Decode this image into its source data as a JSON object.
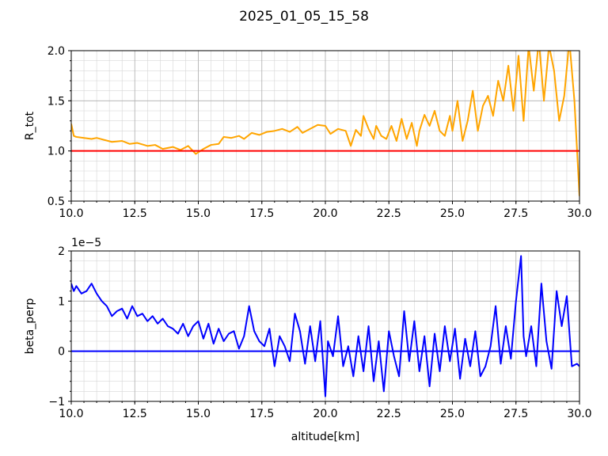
{
  "figure": {
    "title": "2025_01_05_15_58"
  },
  "chart_data": [
    {
      "type": "line",
      "xlabel": "",
      "ylabel": "R_tot",
      "xlim": [
        10.0,
        30.0
      ],
      "ylim": [
        0.5,
        2.0
      ],
      "xticks": [
        "10.0",
        "12.5",
        "15.0",
        "17.5",
        "20.0",
        "22.5",
        "25.0",
        "27.5",
        "30.0"
      ],
      "yticks": [
        "0.5",
        "1.0",
        "1.5",
        "2.0"
      ],
      "xtick_values": [
        10,
        12.5,
        15,
        17.5,
        20,
        22.5,
        25,
        27.5,
        30
      ],
      "ytick_values": [
        0.5,
        1.0,
        1.5,
        2.0
      ],
      "grid": true,
      "reference_line": {
        "y": 1.0,
        "color": "#ff0000"
      },
      "series": [
        {
          "color": "#ffa500",
          "x": [
            10.0,
            10.1,
            10.2,
            10.5,
            10.8,
            11.0,
            11.3,
            11.6,
            12.0,
            12.3,
            12.6,
            13.0,
            13.3,
            13.6,
            14.0,
            14.3,
            14.6,
            14.9,
            15.2,
            15.5,
            15.8,
            16.0,
            16.3,
            16.6,
            16.8,
            17.1,
            17.4,
            17.7,
            18.0,
            18.3,
            18.6,
            18.9,
            19.1,
            19.4,
            19.7,
            20.0,
            20.2,
            20.5,
            20.8,
            21.0,
            21.2,
            21.4,
            21.5,
            21.7,
            21.9,
            22.0,
            22.2,
            22.4,
            22.6,
            22.8,
            23.0,
            23.2,
            23.4,
            23.6,
            23.7,
            23.9,
            24.1,
            24.3,
            24.5,
            24.7,
            24.9,
            25.0,
            25.2,
            25.4,
            25.6,
            25.8,
            26.0,
            26.2,
            26.4,
            26.6,
            26.8,
            27.0,
            27.2,
            27.4,
            27.6,
            27.8,
            28.0,
            28.2,
            28.4,
            28.6,
            28.8,
            29.0,
            29.2,
            29.4,
            29.6,
            29.8,
            30.0
          ],
          "y": [
            1.27,
            1.15,
            1.14,
            1.13,
            1.12,
            1.13,
            1.11,
            1.09,
            1.1,
            1.07,
            1.08,
            1.05,
            1.06,
            1.02,
            1.04,
            1.01,
            1.05,
            0.97,
            1.02,
            1.06,
            1.07,
            1.14,
            1.13,
            1.15,
            1.12,
            1.18,
            1.16,
            1.19,
            1.2,
            1.22,
            1.19,
            1.24,
            1.18,
            1.22,
            1.26,
            1.25,
            1.17,
            1.22,
            1.2,
            1.05,
            1.21,
            1.15,
            1.35,
            1.22,
            1.12,
            1.25,
            1.15,
            1.12,
            1.25,
            1.1,
            1.32,
            1.12,
            1.28,
            1.05,
            1.2,
            1.36,
            1.25,
            1.4,
            1.2,
            1.15,
            1.35,
            1.2,
            1.5,
            1.1,
            1.3,
            1.6,
            1.2,
            1.45,
            1.55,
            1.35,
            1.7,
            1.5,
            1.85,
            1.4,
            1.95,
            1.3,
            2.05,
            1.6,
            2.1,
            1.5,
            2.05,
            1.8,
            1.3,
            1.55,
            2.1,
            1.5,
            0.55
          ]
        }
      ]
    },
    {
      "type": "line",
      "xlabel": "altitude[km]",
      "ylabel": "beta_perp",
      "offset_text": "1e−5",
      "xlim": [
        10.0,
        30.0
      ],
      "ylim": [
        -1,
        2
      ],
      "xticks": [
        "10.0",
        "12.5",
        "15.0",
        "17.5",
        "20.0",
        "22.5",
        "25.0",
        "27.5",
        "30.0"
      ],
      "yticks": [
        "−1",
        "0",
        "1",
        "2"
      ],
      "xtick_values": [
        10,
        12.5,
        15,
        17.5,
        20,
        22.5,
        25,
        27.5,
        30
      ],
      "ytick_values": [
        -1,
        0,
        1,
        2
      ],
      "grid": true,
      "reference_line": {
        "y": 0,
        "color": "#0000ff"
      },
      "series": [
        {
          "color": "#0000ff",
          "x": [
            10.0,
            10.1,
            10.2,
            10.4,
            10.6,
            10.8,
            11.0,
            11.2,
            11.4,
            11.6,
            11.8,
            12.0,
            12.2,
            12.4,
            12.6,
            12.8,
            13.0,
            13.2,
            13.4,
            13.6,
            13.8,
            14.0,
            14.2,
            14.4,
            14.6,
            14.8,
            15.0,
            15.2,
            15.4,
            15.6,
            15.8,
            16.0,
            16.2,
            16.4,
            16.6,
            16.8,
            17.0,
            17.2,
            17.4,
            17.6,
            17.8,
            18.0,
            18.2,
            18.4,
            18.6,
            18.8,
            19.0,
            19.2,
            19.4,
            19.6,
            19.8,
            20.0,
            20.1,
            20.3,
            20.5,
            20.7,
            20.9,
            21.1,
            21.3,
            21.5,
            21.7,
            21.9,
            22.1,
            22.3,
            22.5,
            22.7,
            22.9,
            23.1,
            23.3,
            23.5,
            23.7,
            23.9,
            24.1,
            24.3,
            24.5,
            24.7,
            24.9,
            25.1,
            25.3,
            25.5,
            25.7,
            25.9,
            26.1,
            26.3,
            26.5,
            26.7,
            26.9,
            27.1,
            27.3,
            27.5,
            27.7,
            27.8,
            27.9,
            28.1,
            28.3,
            28.5,
            28.7,
            28.9,
            29.1,
            29.3,
            29.5,
            29.7,
            29.9,
            30.0
          ],
          "y": [
            1.35,
            1.2,
            1.3,
            1.15,
            1.2,
            1.35,
            1.15,
            1.0,
            0.9,
            0.7,
            0.8,
            0.85,
            0.65,
            0.9,
            0.7,
            0.75,
            0.6,
            0.7,
            0.55,
            0.65,
            0.5,
            0.45,
            0.35,
            0.55,
            0.3,
            0.5,
            0.6,
            0.25,
            0.55,
            0.15,
            0.45,
            0.2,
            0.35,
            0.4,
            0.05,
            0.3,
            0.9,
            0.4,
            0.2,
            0.1,
            0.45,
            -0.3,
            0.3,
            0.1,
            -0.2,
            0.75,
            0.4,
            -0.25,
            0.5,
            -0.2,
            0.6,
            -0.9,
            0.2,
            -0.1,
            0.7,
            -0.3,
            0.1,
            -0.5,
            0.3,
            -0.4,
            0.5,
            -0.6,
            0.2,
            -0.8,
            0.4,
            -0.1,
            -0.5,
            0.8,
            -0.2,
            0.6,
            -0.4,
            0.3,
            -0.7,
            0.35,
            -0.4,
            0.5,
            -0.2,
            0.45,
            -0.55,
            0.25,
            -0.3,
            0.4,
            -0.5,
            -0.3,
            0.1,
            0.9,
            -0.25,
            0.5,
            -0.15,
            1.0,
            1.9,
            0.3,
            -0.1,
            0.5,
            -0.3,
            1.35,
            0.2,
            -0.35,
            1.2,
            0.5,
            1.1,
            -0.3,
            -0.25,
            -0.3
          ]
        }
      ]
    }
  ]
}
